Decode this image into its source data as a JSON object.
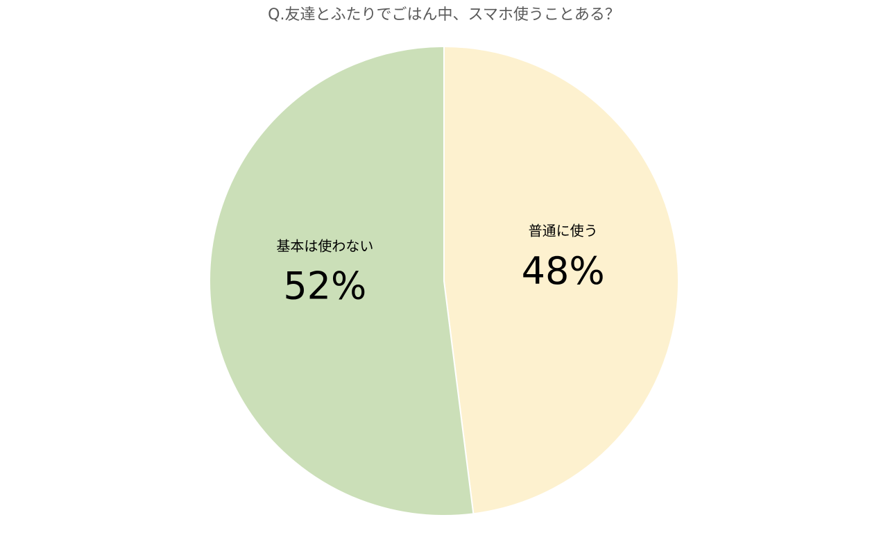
{
  "chart_data": {
    "type": "pie",
    "title": "Q.友達とふたりでごはん中、スマホ使うことある？",
    "categories": [
      "普通に使う",
      "基本は使わない"
    ],
    "values": [
      48,
      52
    ],
    "value_labels": [
      "48%",
      "52%"
    ],
    "colors": [
      "#fdf1cf",
      "#cbdfb8"
    ]
  }
}
